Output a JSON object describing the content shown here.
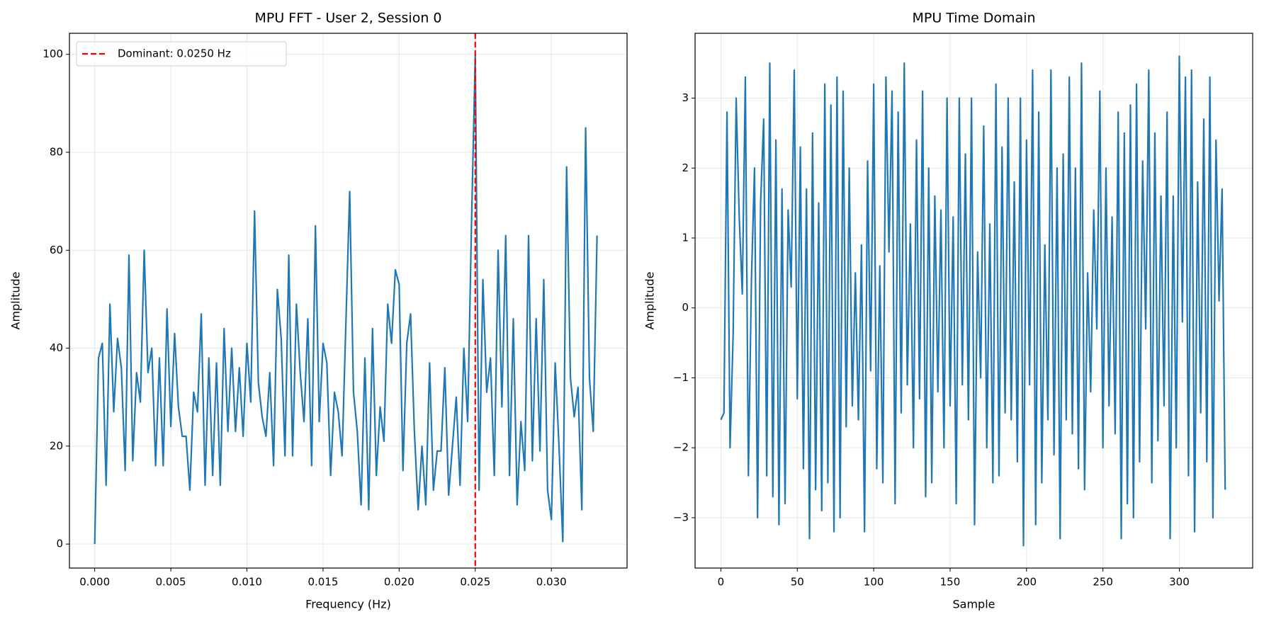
{
  "chart_data": [
    {
      "type": "line",
      "title": "MPU FFT - User 2, Session 0",
      "xlabel": "Frequency (Hz)",
      "ylabel": "Amplitude",
      "color": "#1f77b4",
      "x": [
        0,
        0.00025,
        0.0005,
        0.00075,
        0.001,
        0.00125,
        0.0015,
        0.00175,
        0.002,
        0.00225,
        0.0025,
        0.00275,
        0.003,
        0.00325,
        0.0035,
        0.00375,
        0.004,
        0.00425,
        0.0045,
        0.00475,
        0.005,
        0.00525,
        0.0055,
        0.00575,
        0.006,
        0.00625,
        0.0065,
        0.00675,
        0.007,
        0.00725,
        0.0075,
        0.00775,
        0.008,
        0.00825,
        0.0085,
        0.00875,
        0.009,
        0.00925,
        0.0095,
        0.00975,
        0.01,
        0.01025,
        0.0105,
        0.01075,
        0.011,
        0.01125,
        0.0115,
        0.01175,
        0.012,
        0.01225,
        0.0125,
        0.01275,
        0.013,
        0.01325,
        0.0135,
        0.01375,
        0.014,
        0.01425,
        0.0145,
        0.01475,
        0.015,
        0.01525,
        0.0155,
        0.01575,
        0.016,
        0.01625,
        0.0165,
        0.01675,
        0.017,
        0.01725,
        0.0175,
        0.01775,
        0.018,
        0.01825,
        0.0185,
        0.01875,
        0.019,
        0.01925,
        0.0195,
        0.01975,
        0.02,
        0.02025,
        0.0205,
        0.02075,
        0.021,
        0.02125,
        0.0215,
        0.02175,
        0.022,
        0.02225,
        0.0225,
        0.02275,
        0.023,
        0.02325,
        0.0235,
        0.02375,
        0.024,
        0.02425,
        0.0245,
        0.02475,
        0.025,
        0.02525,
        0.0255,
        0.02575,
        0.026,
        0.02625,
        0.0265,
        0.02675,
        0.027,
        0.02725,
        0.0275,
        0.02775,
        0.028,
        0.02825,
        0.0285,
        0.02875,
        0.029,
        0.02925,
        0.0295,
        0.02975,
        0.03,
        0.03025,
        0.0305,
        0.03075,
        0.031,
        0.03125,
        0.0315,
        0.03175,
        0.032,
        0.03225,
        0.0325,
        0.03275,
        0.033
      ],
      "values": [
        0,
        38,
        41,
        12,
        49,
        27,
        42,
        36,
        15,
        59,
        17,
        35,
        29,
        60,
        35,
        40,
        16,
        38,
        16,
        48,
        24,
        43,
        28,
        22,
        22,
        11,
        31,
        27,
        47,
        12,
        38,
        14,
        37,
        12,
        44,
        23,
        40,
        23,
        36,
        22,
        41,
        29,
        68,
        33,
        26,
        22,
        35,
        16,
        52,
        42,
        18,
        59,
        18,
        49,
        35,
        25,
        46,
        16,
        65,
        25,
        41,
        37,
        14,
        31,
        27,
        18,
        45,
        72,
        31,
        23,
        8,
        38,
        7,
        44,
        14,
        28,
        21,
        49,
        41,
        56,
        53,
        15,
        41,
        47,
        23,
        7,
        20,
        8,
        37,
        11,
        19,
        19,
        36,
        10,
        20,
        30,
        12,
        40,
        25,
        65,
        100,
        11,
        54,
        31,
        38,
        14,
        60,
        28,
        63,
        14,
        46,
        8,
        25,
        15,
        63,
        17,
        46,
        19,
        54,
        11,
        5,
        37,
        20,
        0.5,
        77,
        34,
        26,
        32,
        7,
        85,
        34,
        23,
        63
      ],
      "vlines": [
        {
          "name": "Dominant: 0.0250 Hz",
          "x": 0.025,
          "color": "#ff0000"
        }
      ],
      "xlim": [
        -0.00166,
        0.03497
      ],
      "ylim": [
        -4.9,
        104.3
      ],
      "xticks": [
        {
          "value": 0,
          "label": "0.000"
        },
        {
          "value": 0.005,
          "label": "0.005"
        },
        {
          "value": 0.01,
          "label": "0.010"
        },
        {
          "value": 0.015,
          "label": "0.015"
        },
        {
          "value": 0.02,
          "label": "0.020"
        },
        {
          "value": 0.025,
          "label": "0.025"
        },
        {
          "value": 0.03,
          "label": "0.030"
        }
      ],
      "yticks": [
        0,
        20,
        40,
        60,
        80,
        100
      ],
      "grid": true,
      "legend": "upper left"
    },
    {
      "type": "line",
      "title": "MPU Time Domain",
      "xlabel": "Sample",
      "ylabel": "Amplitude",
      "color": "#1f77b4",
      "x": [
        0,
        2,
        4,
        6,
        8,
        10,
        12,
        14,
        16,
        18,
        20,
        22,
        24,
        26,
        28,
        30,
        32,
        34,
        36,
        38,
        40,
        42,
        44,
        46,
        48,
        50,
        52,
        54,
        56,
        58,
        60,
        62,
        64,
        66,
        68,
        70,
        72,
        74,
        76,
        78,
        80,
        82,
        84,
        86,
        88,
        90,
        92,
        94,
        96,
        98,
        100,
        102,
        104,
        106,
        108,
        110,
        112,
        114,
        116,
        118,
        120,
        122,
        124,
        126,
        128,
        130,
        132,
        134,
        136,
        138,
        140,
        142,
        144,
        146,
        148,
        150,
        152,
        154,
        156,
        158,
        160,
        162,
        164,
        166,
        168,
        170,
        172,
        174,
        176,
        178,
        180,
        182,
        184,
        186,
        188,
        190,
        192,
        194,
        196,
        198,
        200,
        202,
        204,
        206,
        208,
        210,
        212,
        214,
        216,
        218,
        220,
        222,
        224,
        226,
        228,
        230,
        232,
        234,
        236,
        238,
        240,
        242,
        244,
        246,
        248,
        250,
        252,
        254,
        256,
        258,
        260,
        262,
        264,
        266,
        268,
        270,
        272,
        274,
        276,
        278,
        280,
        282,
        284,
        286,
        288,
        290,
        292,
        294,
        296,
        298,
        300,
        302,
        304,
        306,
        308,
        310,
        312,
        314,
        316,
        318,
        320,
        322,
        324,
        326,
        328,
        330
      ],
      "values": [
        -1.6,
        -1.5,
        2.8,
        -2.0,
        -0.4,
        3.0,
        1.3,
        0.2,
        3.3,
        -2.4,
        0.4,
        2.0,
        -3.0,
        1.5,
        2.7,
        -2.4,
        3.5,
        -2.7,
        2.4,
        -3.1,
        1.7,
        -2.8,
        1.4,
        0.3,
        3.4,
        -1.3,
        2.3,
        -2.3,
        1.7,
        -3.3,
        2.5,
        -2.6,
        1.5,
        -2.9,
        3.2,
        -2.5,
        2.9,
        -3.2,
        3.3,
        -3.0,
        3.1,
        -1.7,
        2.0,
        -1.4,
        0.5,
        -1.6,
        0.9,
        -3.2,
        2.1,
        -0.9,
        3.2,
        -2.3,
        0.6,
        -2.5,
        3.3,
        0.8,
        3.1,
        -2.8,
        2.8,
        -1.5,
        3.5,
        -1.1,
        1.2,
        -2.0,
        2.4,
        -1.3,
        3.1,
        -2.7,
        2.0,
        -2.5,
        1.6,
        -1.2,
        1.4,
        -2.0,
        3.0,
        -1.4,
        1.3,
        -2.8,
        3.0,
        -1.1,
        2.2,
        -1.6,
        3.0,
        -3.1,
        0.8,
        -1.0,
        2.6,
        -2.0,
        1.2,
        -2.5,
        3.2,
        -2.4,
        2.3,
        -1.5,
        3.0,
        -1.6,
        1.8,
        -2.2,
        3.0,
        -3.4,
        2.4,
        -1.1,
        3.4,
        -3.1,
        2.8,
        -2.5,
        0.9,
        -1.6,
        3.4,
        -2.1,
        2.0,
        -3.3,
        2.2,
        -1.6,
        3.3,
        -1.8,
        2.0,
        -2.3,
        3.5,
        -2.6,
        0.5,
        -1.2,
        1.4,
        -0.3,
        3.1,
        -2.0,
        2.0,
        -1.4,
        1.3,
        -1.8,
        2.8,
        -3.3,
        2.5,
        -2.8,
        2.9,
        -3.0,
        3.2,
        -2.2,
        2.1,
        -0.3,
        3.4,
        -2.5,
        2.5,
        -1.9,
        1.6,
        -1.4,
        2.8,
        -3.3,
        1.6,
        -2.0,
        3.6,
        -0.2,
        3.3,
        -2.4,
        3.4,
        -3.2,
        1.8,
        -1.5,
        2.7,
        -2.2,
        3.3,
        -3.0,
        2.4,
        0.1,
        1.7,
        -2.6
      ],
      "xlim": [
        -16.9,
        348
      ],
      "ylim": [
        -3.72,
        3.927
      ],
      "xticks": [
        0,
        50,
        100,
        150,
        200,
        250,
        300
      ],
      "yticks": [
        {
          "value": -3,
          "label": "−3"
        },
        {
          "value": -2,
          "label": "−2"
        },
        {
          "value": -1,
          "label": "−1"
        },
        0,
        1,
        2,
        3
      ],
      "grid": true
    }
  ]
}
